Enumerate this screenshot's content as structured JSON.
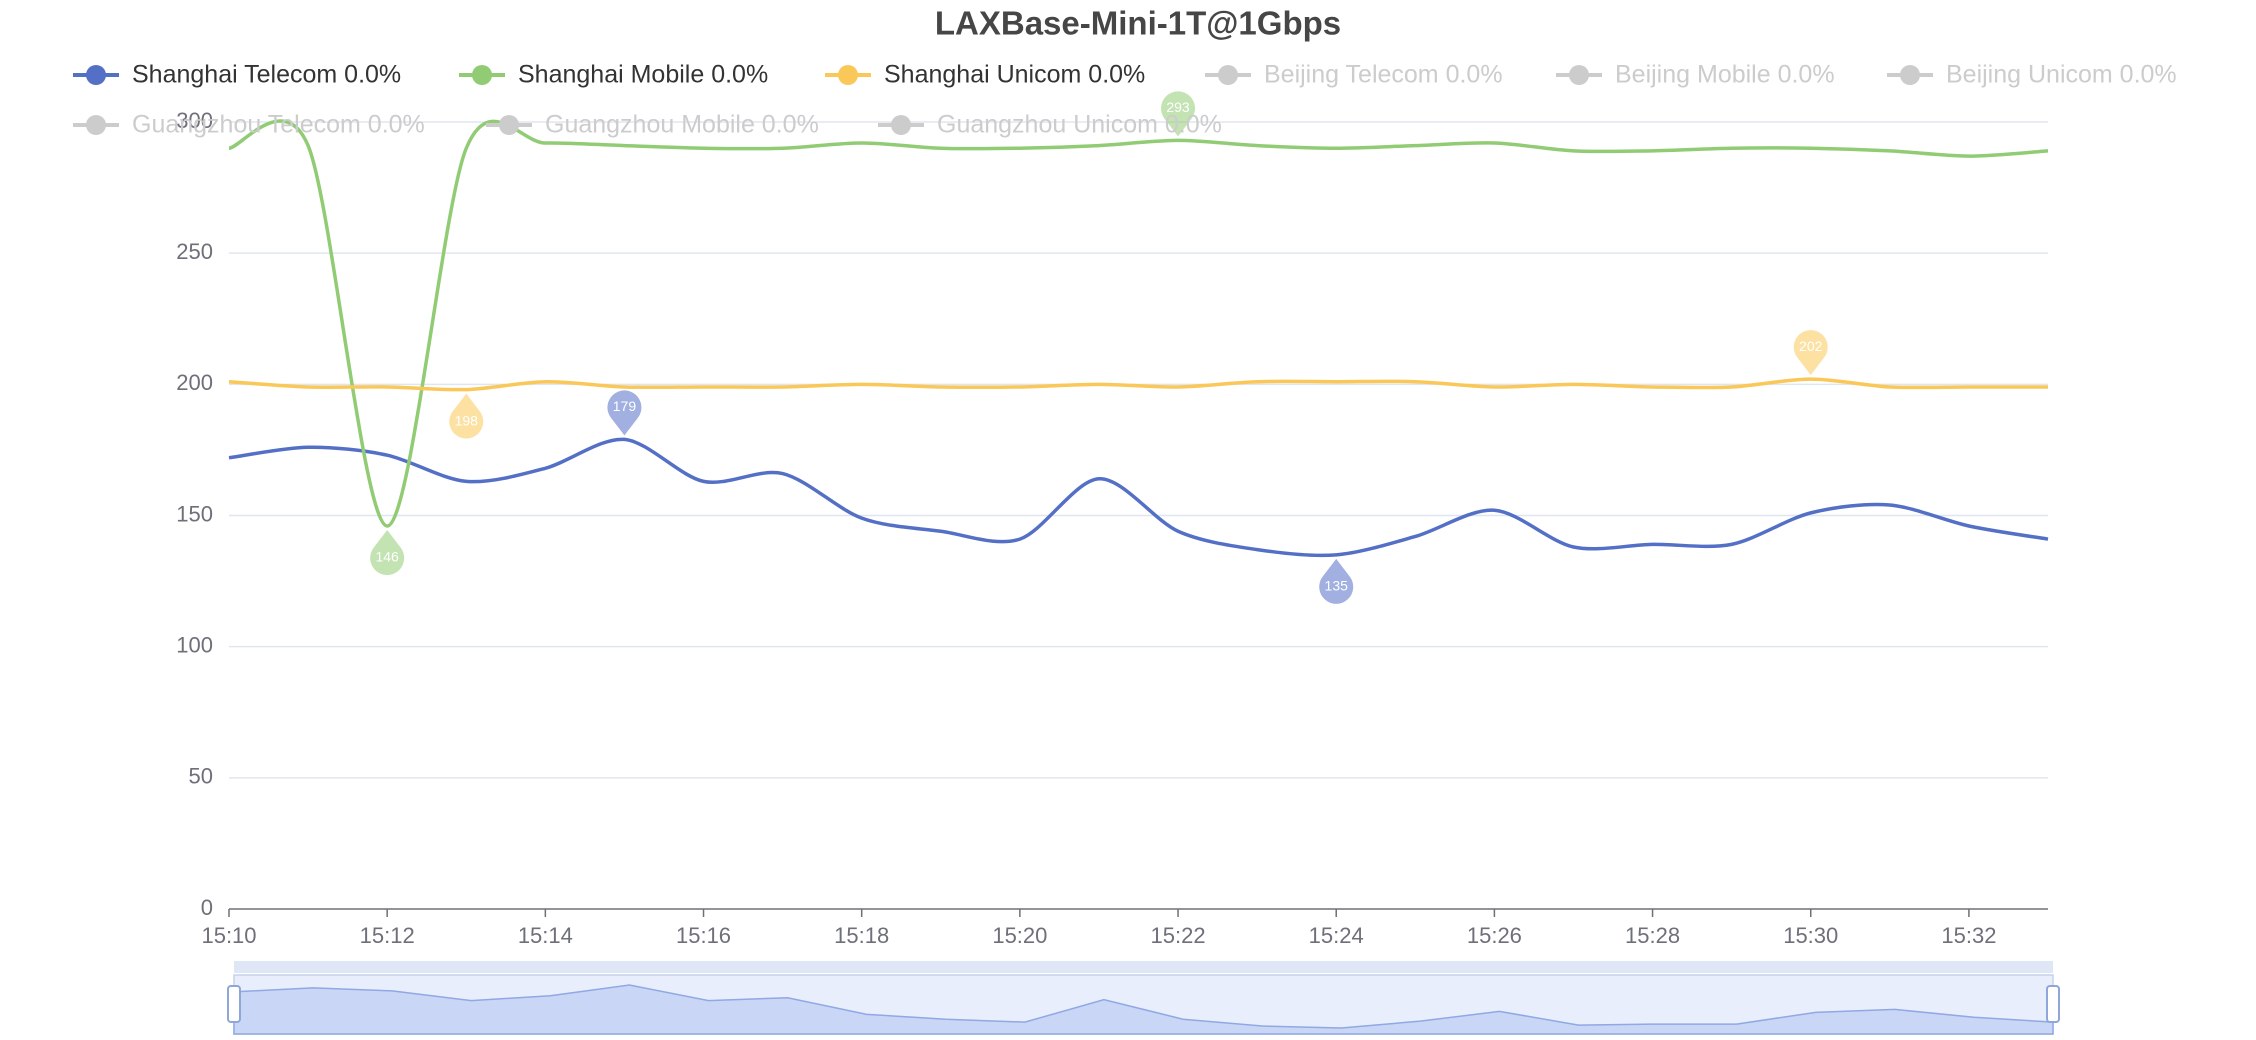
{
  "chart_data": {
    "type": "line",
    "title": "LAXBase-Mini-1T@1Gbps",
    "categories": [
      "15:10",
      null,
      "15:12",
      null,
      "15:14",
      null,
      "15:16",
      null,
      "15:18",
      null,
      "15:20",
      null,
      "15:22",
      null,
      "15:24",
      null,
      "15:26",
      null,
      "15:28",
      null,
      "15:30",
      null,
      "15:32",
      null
    ],
    "series": [
      {
        "name": "Shanghai Telecom 0.0%",
        "color": "#5470c6",
        "values": [
          172,
          176,
          173,
          163,
          168,
          179,
          163,
          166,
          149,
          144,
          141,
          164,
          144,
          137,
          135,
          142,
          152,
          138,
          139,
          139,
          151,
          154,
          146,
          141
        ]
      },
      {
        "name": "Shanghai Mobile 0.0%",
        "color": "#91cc75",
        "values": [
          290,
          291,
          146,
          290,
          292,
          291,
          290,
          290,
          292,
          290,
          290,
          291,
          293,
          291,
          290,
          291,
          292,
          289,
          289,
          290,
          290,
          289,
          287,
          289
        ]
      },
      {
        "name": "Shanghai Unicom 0.0%",
        "color": "#fac858",
        "values": [
          201,
          199,
          199,
          198,
          201,
          199,
          199,
          199,
          200,
          199,
          199,
          200,
          199,
          201,
          201,
          201,
          199,
          200,
          199,
          199,
          202,
          199,
          199,
          199
        ]
      }
    ],
    "hidden_series": [
      {
        "name": "Beijing Telecom 0.0%"
      },
      {
        "name": "Beijing Mobile 0.0%"
      },
      {
        "name": "Beijing Unicom 0.0%"
      },
      {
        "name": "Guangzhou Telecom 0.0%"
      },
      {
        "name": "Guangzhou Mobile 0.0%"
      },
      {
        "name": "Guangzhou Unicom 0.0%"
      }
    ],
    "ylim": [
      0,
      300
    ],
    "yticks": [
      0,
      50,
      100,
      150,
      200,
      250,
      300
    ],
    "grid": true
  }
}
